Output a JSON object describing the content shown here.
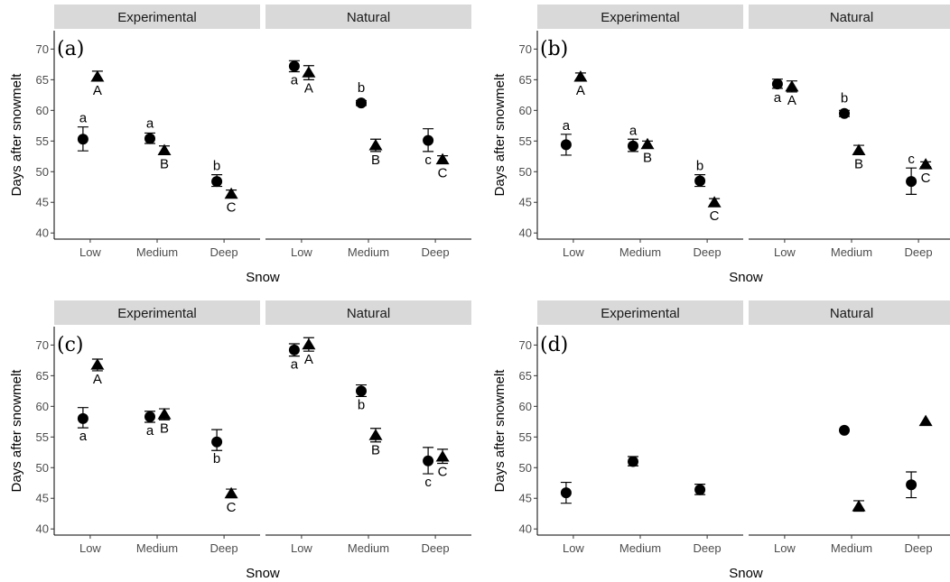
{
  "chart_data": [
    {
      "type": "scatter",
      "panel_label": "(a)",
      "facets": [
        "Experimental",
        "Natural"
      ],
      "categories": [
        "Low",
        "Medium",
        "Deep"
      ],
      "xlabel": "Snow",
      "ylabel": "Days after snowmelt",
      "ylim": [
        39,
        73
      ],
      "yticks": [
        40,
        45,
        50,
        55,
        60,
        65,
        70
      ],
      "grid": false,
      "series": [
        {
          "marker": "circle",
          "facet": "Experimental",
          "values": [
            55.3,
            55.4,
            48.4
          ],
          "err_low": [
            53.4,
            54.6,
            47.6
          ],
          "err_high": [
            57.3,
            56.3,
            49.5
          ],
          "letters": [
            "a",
            "a",
            "b"
          ],
          "letter_pos": [
            "above",
            "above",
            "above"
          ]
        },
        {
          "marker": "triangle",
          "facet": "Experimental",
          "values": [
            65.5,
            53.5,
            46.4
          ],
          "err_low": [
            64.8,
            52.8,
            45.8
          ],
          "err_high": [
            66.4,
            54.2,
            47.0
          ],
          "letters": [
            "A",
            "B",
            "C"
          ],
          "letter_pos": [
            "below",
            "below",
            "below"
          ]
        },
        {
          "marker": "circle",
          "facet": "Natural",
          "values": [
            67.2,
            61.2,
            55.1
          ],
          "err_low": [
            66.3,
            60.8,
            53.3
          ],
          "err_high": [
            68.1,
            61.6,
            57.0
          ],
          "letters": [
            "a",
            "b",
            "c"
          ],
          "letter_pos": [
            "below",
            "above",
            "below"
          ]
        },
        {
          "marker": "triangle",
          "facet": "Natural",
          "values": [
            66.2,
            54.3,
            52.0
          ],
          "err_low": [
            65.0,
            53.3,
            51.3
          ],
          "err_high": [
            67.3,
            55.3,
            52.6
          ],
          "letters": [
            "A",
            "B",
            "C"
          ],
          "letter_pos": [
            "below",
            "below",
            "below"
          ]
        }
      ]
    },
    {
      "type": "scatter",
      "panel_label": "(b)",
      "facets": [
        "Experimental",
        "Natural"
      ],
      "categories": [
        "Low",
        "Medium",
        "Deep"
      ],
      "xlabel": "Snow",
      "ylabel": "Days after snowmelt",
      "ylim": [
        39,
        73
      ],
      "yticks": [
        40,
        45,
        50,
        55,
        60,
        65,
        70
      ],
      "grid": false,
      "series": [
        {
          "marker": "circle",
          "facet": "Experimental",
          "values": [
            54.4,
            54.2,
            48.5
          ],
          "err_low": [
            52.7,
            53.3,
            47.6
          ],
          "err_high": [
            56.1,
            55.3,
            49.5
          ],
          "letters": [
            "a",
            "a",
            "b"
          ],
          "letter_pos": [
            "above",
            "above",
            "above"
          ]
        },
        {
          "marker": "triangle",
          "facet": "Experimental",
          "values": [
            65.5,
            54.5,
            45.0
          ],
          "err_low": [
            65.0,
            54.0,
            44.4
          ],
          "err_high": [
            66.1,
            55.0,
            45.6
          ],
          "letters": [
            "A",
            "B",
            "C"
          ],
          "letter_pos": [
            "below",
            "below",
            "below"
          ]
        },
        {
          "marker": "circle",
          "facet": "Natural",
          "values": [
            64.3,
            59.5,
            48.4
          ],
          "err_low": [
            63.6,
            59.0,
            46.3
          ],
          "err_high": [
            65.1,
            60.0,
            50.6
          ],
          "letters": [
            "a",
            "b",
            "c"
          ],
          "letter_pos": [
            "below",
            "above",
            "above"
          ]
        },
        {
          "marker": "triangle",
          "facet": "Natural",
          "values": [
            63.9,
            53.5,
            51.2
          ],
          "err_low": [
            63.0,
            52.8,
            50.8
          ],
          "err_high": [
            64.8,
            54.3,
            51.6
          ],
          "letters": [
            "A",
            "B",
            "C"
          ],
          "letter_pos": [
            "below",
            "below",
            "below"
          ]
        }
      ]
    },
    {
      "type": "scatter",
      "panel_label": "(c)",
      "facets": [
        "Experimental",
        "Natural"
      ],
      "categories": [
        "Low",
        "Medium",
        "Deep"
      ],
      "xlabel": "Snow",
      "ylabel": "Days after snowmelt",
      "ylim": [
        39,
        73
      ],
      "yticks": [
        40,
        45,
        50,
        55,
        60,
        65,
        70
      ],
      "grid": false,
      "series": [
        {
          "marker": "circle",
          "facet": "Experimental",
          "values": [
            58.0,
            58.3,
            54.2
          ],
          "err_low": [
            56.5,
            57.4,
            52.8
          ],
          "err_high": [
            59.8,
            59.2,
            56.2
          ],
          "letters": [
            "a",
            "a",
            "b"
          ],
          "letter_pos": [
            "below",
            "below",
            "below"
          ]
        },
        {
          "marker": "triangle",
          "facet": "Experimental",
          "values": [
            66.8,
            58.7,
            45.8
          ],
          "err_low": [
            65.8,
            57.8,
            45.1
          ],
          "err_high": [
            67.7,
            59.6,
            46.5
          ],
          "letters": [
            "A",
            "B",
            "C"
          ],
          "letter_pos": [
            "below",
            "below",
            "below"
          ]
        },
        {
          "marker": "circle",
          "facet": "Natural",
          "values": [
            69.2,
            62.5,
            51.1
          ],
          "err_low": [
            68.2,
            61.6,
            49.0
          ],
          "err_high": [
            70.2,
            63.5,
            53.3
          ],
          "letters": [
            "a",
            "b",
            "c"
          ],
          "letter_pos": [
            "below",
            "below",
            "below"
          ]
        },
        {
          "marker": "triangle",
          "facet": "Natural",
          "values": [
            70.1,
            55.3,
            51.8
          ],
          "err_low": [
            69.0,
            54.2,
            50.7
          ],
          "err_high": [
            71.2,
            56.4,
            53.0
          ],
          "letters": [
            "A",
            "B",
            "C"
          ],
          "letter_pos": [
            "below",
            "below",
            "below"
          ]
        }
      ]
    },
    {
      "type": "scatter",
      "panel_label": "(d)",
      "facets": [
        "Experimental",
        "Natural"
      ],
      "categories": [
        "Low",
        "Medium",
        "Deep"
      ],
      "xlabel": "Snow",
      "ylabel": "Days after snowmelt",
      "ylim": [
        39,
        73
      ],
      "yticks": [
        40,
        45,
        50,
        55,
        60,
        65,
        70
      ],
      "grid": false,
      "series": [
        {
          "marker": "circle",
          "facet": "Experimental",
          "values": [
            45.9,
            51.0,
            46.4
          ],
          "err_low": [
            44.2,
            50.3,
            45.6
          ],
          "err_high": [
            47.6,
            51.8,
            47.3
          ],
          "letters": [],
          "letter_pos": []
        },
        {
          "marker": "circle",
          "facet": "Natural",
          "values": [
            null,
            56.1,
            47.2
          ],
          "err_low": [
            null,
            null,
            45.1
          ],
          "err_high": [
            null,
            null,
            49.3
          ],
          "letters": [],
          "letter_pos": []
        },
        {
          "marker": "triangle",
          "facet": "Natural",
          "values": [
            null,
            43.7,
            57.6
          ],
          "err_low": [
            null,
            42.9,
            null
          ],
          "err_high": [
            null,
            44.6,
            null
          ],
          "letters": [],
          "letter_pos": []
        }
      ]
    }
  ]
}
